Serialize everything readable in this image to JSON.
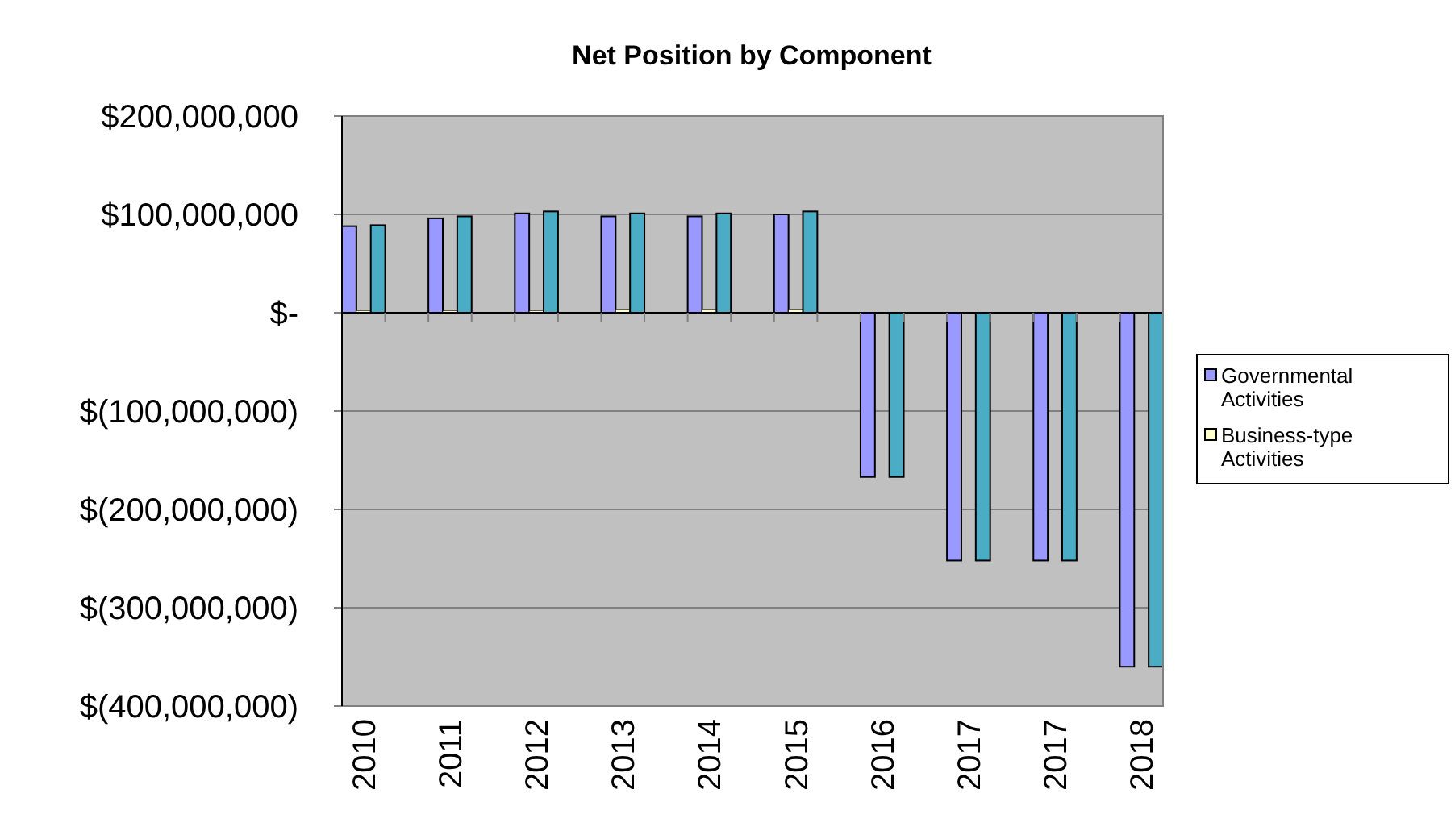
{
  "chart_data": {
    "type": "bar",
    "title": "Net Position by Component",
    "categories": [
      "2010",
      "2011",
      "2012",
      "2013",
      "2014",
      "2015",
      "2016",
      "2017",
      "2017",
      "2018"
    ],
    "series": [
      {
        "name": "Governmental Activities",
        "color": "#9999ff",
        "values": [
          88000000,
          96000000,
          101000000,
          98000000,
          98000000,
          100000000,
          -167000000,
          -252000000,
          -252000000,
          -360000000
        ]
      },
      {
        "name": "Business-type Activities",
        "color": "#ffffcc",
        "values": [
          2000000,
          2000000,
          2000000,
          3000000,
          3000000,
          3000000,
          0,
          0,
          0,
          0
        ]
      },
      {
        "color": "#4bacc6",
        "values": [
          89000000,
          98000000,
          103000000,
          101000000,
          101000000,
          103000000,
          -167000000,
          -252000000,
          -252000000,
          -360000000
        ]
      }
    ],
    "ylim": [
      -400000000,
      200000000
    ],
    "yticks": [
      {
        "value": -400000000,
        "label": "$(400,000,000)"
      },
      {
        "value": -300000000,
        "label": "$(300,000,000)"
      },
      {
        "value": -200000000,
        "label": "$(200,000,000)"
      },
      {
        "value": -100000000,
        "label": "$(100,000,000)"
      },
      {
        "value": 0,
        "label": "$-"
      },
      {
        "value": 100000000,
        "label": "$100,000,000"
      },
      {
        "value": 200000000,
        "label": "$200,000,000"
      }
    ],
    "grid": "y",
    "legend": "right"
  }
}
